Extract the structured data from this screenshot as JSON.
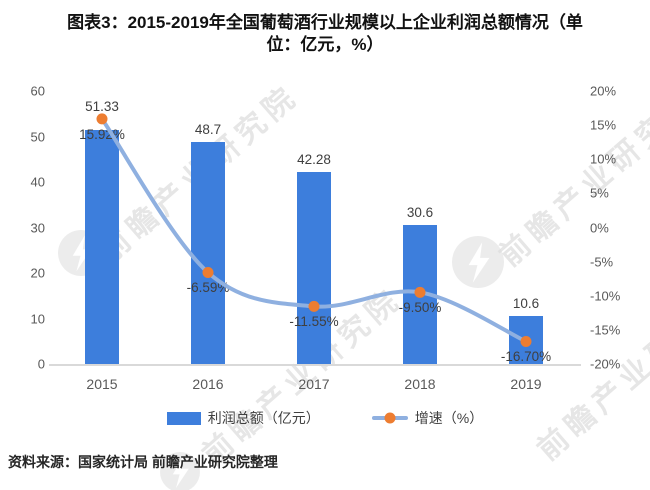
{
  "title": {
    "line1": "图表3：2015-2019年全国葡萄酒行业规模以上企业利润总额情况（单",
    "line2": "位：亿元，%）"
  },
  "source": "资料来源：国家统计局 前瞻产业研究院整理",
  "watermark": {
    "text": "前瞻产业研究院"
  },
  "legend": [
    {
      "label": "利润总额（亿元）",
      "type": "bar"
    },
    {
      "label": "增速（%）",
      "type": "line"
    }
  ],
  "chart_data": {
    "type": "bar",
    "subtype": "bar-line-combo",
    "title": "图表3：2015-2019年全国葡萄酒行业规模以上企业利润总额情况（单位：亿元，%）",
    "categories": [
      "2015",
      "2016",
      "2017",
      "2018",
      "2019"
    ],
    "series": [
      {
        "name": "利润总额（亿元）",
        "type": "bar",
        "axis": "left",
        "values": [
          51.33,
          48.7,
          42.28,
          30.6,
          10.6
        ],
        "labels": [
          "51.33",
          "48.7",
          "42.28",
          "30.6",
          "10.6"
        ]
      },
      {
        "name": "增速（%）",
        "type": "line",
        "axis": "right",
        "values": [
          15.92,
          -6.59,
          -11.55,
          -9.5,
          -16.7
        ],
        "labels": [
          "15.92%",
          "-6.59%",
          "-11.55%",
          "-9.50%",
          "-16.70%"
        ]
      }
    ],
    "left_axis": {
      "min": 0,
      "max": 60,
      "ticks": [
        "60",
        "50",
        "40",
        "30",
        "20",
        "10",
        "0"
      ]
    },
    "right_axis": {
      "min": -20,
      "max": 20,
      "ticks": [
        "20%",
        "15%",
        "10%",
        "5%",
        "0%",
        "-5%",
        "-10%",
        "-15%",
        "-20%"
      ]
    },
    "grid": false,
    "legend_position": "bottom",
    "colors": {
      "bar": "#3D7EDC",
      "line": "#8FB0E0",
      "marker": "#ED7D31",
      "axis_text": "#595959",
      "label_text": "#3F3F3F",
      "axis_line": "#D9D9D9",
      "title_text": "#111111",
      "watermark": "#DEDEDE"
    }
  }
}
